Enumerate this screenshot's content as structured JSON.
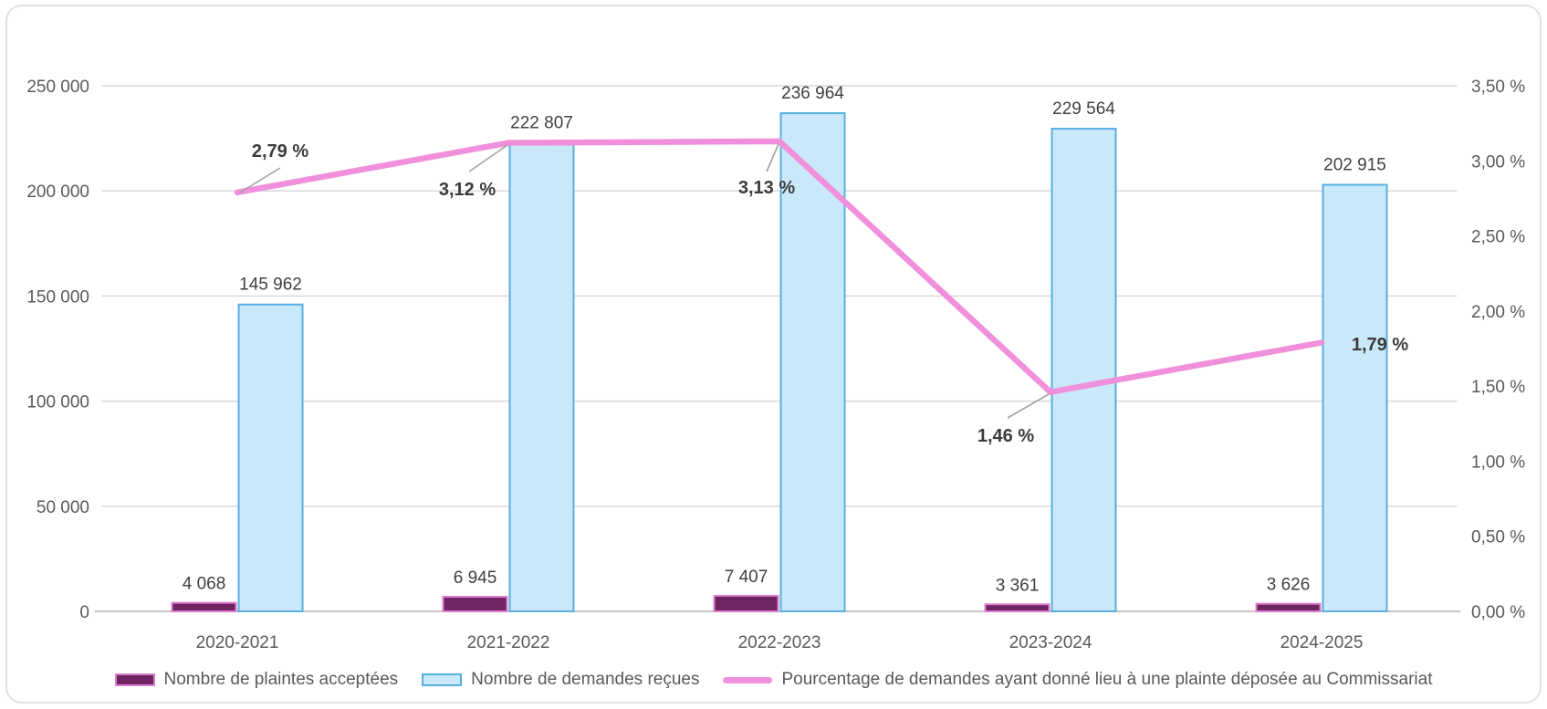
{
  "chart_data": {
    "type": "combo",
    "title": "",
    "categories": [
      "2020-2021",
      "2021-2022",
      "2022-2023",
      "2023-2024",
      "2024-2025"
    ],
    "series": [
      {
        "name": "Nombre de plaintes acceptées",
        "type": "bar",
        "axis": "left",
        "values": [
          4068,
          6945,
          7407,
          3361,
          3626
        ],
        "value_labels": [
          "4 068",
          "6 945",
          "7 407",
          "3 361",
          "3 626"
        ],
        "fill": "#6F2564",
        "stroke": "#DD7ECC"
      },
      {
        "name": "Nombre de demandes reçues",
        "type": "bar",
        "axis": "left",
        "values": [
          145962,
          222807,
          236964,
          229564,
          202915
        ],
        "value_labels": [
          "145 962",
          "222 807",
          "236 964",
          "229 564",
          "202 915"
        ],
        "fill": "#C9E8F9",
        "stroke": "#58AFE0"
      },
      {
        "name": "Pourcentage de demandes ayant donné lieu à une plainte déposée au Commissariat",
        "type": "line",
        "axis": "right",
        "values": [
          2.79,
          3.12,
          3.13,
          1.46,
          1.79
        ],
        "value_labels": [
          "2,79 %",
          "3,12 %",
          "3,13 %",
          "1,46 %",
          "1,79 %"
        ],
        "color": "#F090DC"
      }
    ],
    "left_axis": {
      "min": 0,
      "max": 250000,
      "step": 50000,
      "tick_labels": [
        "0",
        "50 000",
        "100 000",
        "150 000",
        "200 000",
        "250 000"
      ]
    },
    "right_axis": {
      "min": 0,
      "max": 3.5,
      "step": 0.5,
      "tick_labels": [
        "0,00 %",
        "0,50 %",
        "1,00 %",
        "1,50 %",
        "2,00 %",
        "2,50 %",
        "3,00 %",
        "3,50 %"
      ]
    },
    "grid": true,
    "legend_position": "bottom",
    "colors": {
      "grid": "#D9D9D9",
      "axis_line": "#C6C6C6",
      "tick_text": "#595959",
      "category_text": "#595959",
      "value_label_text": "#404040",
      "percent_label_text": "#3B3B3B",
      "leader": "#A0A0A0",
      "background": "#FFFFFF",
      "card_border": "#E1E1E1"
    }
  }
}
